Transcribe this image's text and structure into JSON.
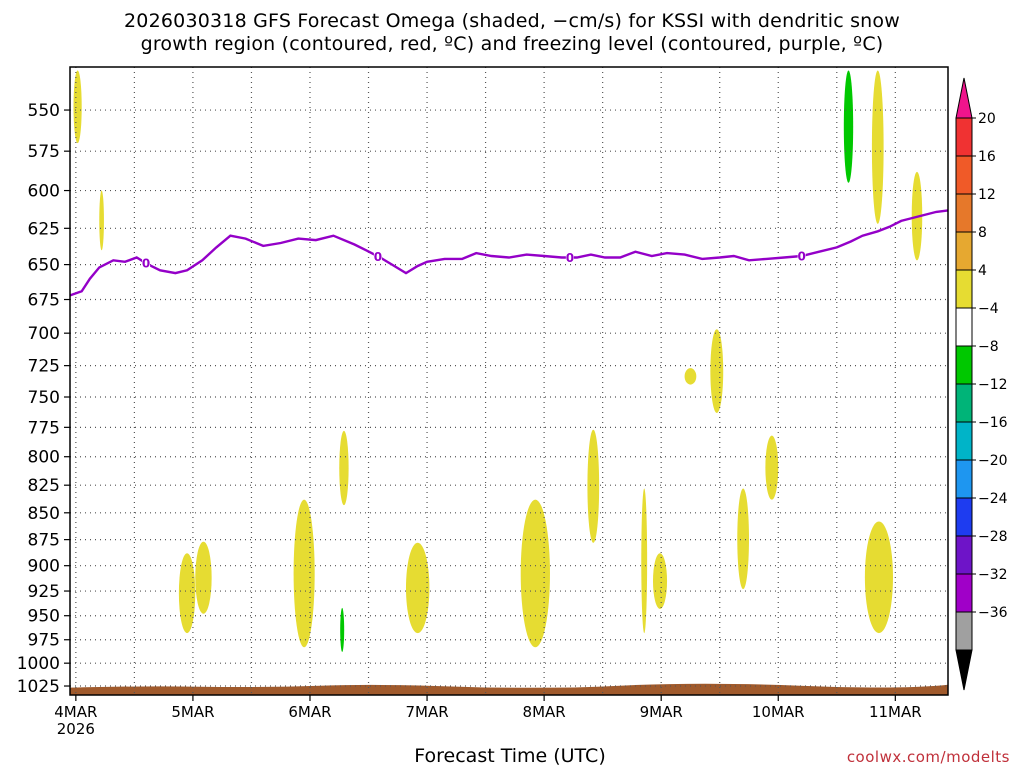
{
  "title_line1": "2026030318 GFS Forecast Omega (shaded, −cm/s) for KSSI with dendritic snow",
  "title_line2": "growth region (contoured, red, ºC) and freezing level (contoured, purple, ºC)",
  "credit": "coolwx.com/modelts",
  "colors": {
    "freezing_level": "#9400c8",
    "ground": "#a05a2c",
    "omega_yellow": "#e6dc32",
    "omega_green": "#00c800"
  },
  "chart_data": {
    "type": "heatmap",
    "xlabel": "Forecast Time (UTC)",
    "x_unit": "days from 2026-03-04 00Z",
    "xlim": [
      -0.05,
      7.45
    ],
    "ylim": [
      525,
      1035
    ],
    "y_scale": "log-pressure (hPa)",
    "y_ticks": [
      550,
      575,
      600,
      625,
      650,
      675,
      700,
      725,
      750,
      775,
      800,
      825,
      850,
      875,
      900,
      925,
      950,
      975,
      1000,
      1025
    ],
    "x_ticks": [
      {
        "x": 0,
        "label": "4MAR"
      },
      {
        "x": 1,
        "label": "5MAR"
      },
      {
        "x": 2,
        "label": "6MAR"
      },
      {
        "x": 3,
        "label": "7MAR"
      },
      {
        "x": 4,
        "label": "8MAR"
      },
      {
        "x": 5,
        "label": "9MAR"
      },
      {
        "x": 6,
        "label": "10MAR"
      },
      {
        "x": 7,
        "label": "11MAR"
      }
    ],
    "x_year_label": "2026",
    "grid": true,
    "colorbar": {
      "labels": [
        "20",
        "16",
        "12",
        "8",
        "4",
        "−4",
        "−8",
        "−12",
        "−16",
        "−20",
        "−24",
        "−28",
        "−32",
        "−36"
      ],
      "colors": [
        "#f03232",
        "#f05a28",
        "#e6782a",
        "#e6a830",
        "#e6dc32",
        "#ffffff",
        "#00c800",
        "#00b478",
        "#00b4c8",
        "#1e96f0",
        "#1e3cf0",
        "#6e14c8",
        "#a000c8",
        "#a0a0a0"
      ],
      "top_triangle": "#f0148c",
      "bottom_triangle": "#000000"
    },
    "freezing_level": {
      "label": "0",
      "points": [
        [
          -0.05,
          672
        ],
        [
          0.05,
          669
        ],
        [
          0.12,
          660
        ],
        [
          0.2,
          652
        ],
        [
          0.32,
          647
        ],
        [
          0.42,
          648
        ],
        [
          0.52,
          645
        ],
        [
          0.62,
          650
        ],
        [
          0.72,
          654
        ],
        [
          0.85,
          656
        ],
        [
          0.95,
          654
        ],
        [
          1.08,
          647
        ],
        [
          1.2,
          638
        ],
        [
          1.32,
          630
        ],
        [
          1.45,
          632
        ],
        [
          1.6,
          637
        ],
        [
          1.75,
          635
        ],
        [
          1.9,
          632
        ],
        [
          2.05,
          633
        ],
        [
          2.2,
          630
        ],
        [
          2.38,
          636
        ],
        [
          2.48,
          640
        ],
        [
          2.6,
          645
        ],
        [
          2.72,
          651
        ],
        [
          2.82,
          656
        ],
        [
          2.92,
          651
        ],
        [
          3.0,
          648
        ],
        [
          3.15,
          646
        ],
        [
          3.3,
          646
        ],
        [
          3.42,
          642
        ],
        [
          3.55,
          644
        ],
        [
          3.7,
          645
        ],
        [
          3.85,
          643
        ],
        [
          4.0,
          644
        ],
        [
          4.15,
          645
        ],
        [
          4.28,
          645
        ],
        [
          4.4,
          643
        ],
        [
          4.52,
          645
        ],
        [
          4.65,
          645
        ],
        [
          4.78,
          641
        ],
        [
          4.92,
          644
        ],
        [
          5.05,
          642
        ],
        [
          5.2,
          643
        ],
        [
          5.35,
          646
        ],
        [
          5.5,
          645
        ],
        [
          5.62,
          644
        ],
        [
          5.75,
          647
        ],
        [
          5.9,
          646
        ],
        [
          6.05,
          645
        ],
        [
          6.2,
          644
        ],
        [
          6.35,
          641
        ],
        [
          6.5,
          638
        ],
        [
          6.62,
          634
        ],
        [
          6.72,
          630
        ],
        [
          6.85,
          627
        ],
        [
          6.95,
          624
        ],
        [
          7.05,
          620
        ],
        [
          7.15,
          618
        ],
        [
          7.25,
          616
        ],
        [
          7.35,
          614
        ],
        [
          7.45,
          613
        ]
      ],
      "contour_labels_x": [
        0.6,
        2.58,
        4.22,
        6.2
      ]
    },
    "ground_level_hPa": 1028,
    "omega_regions": [
      {
        "value_class": "4",
        "x": [
          -0.02,
          0.05
        ],
        "p": [
          527,
          570
        ]
      },
      {
        "value_class": "4",
        "x": [
          0.2,
          0.24
        ],
        "p": [
          600,
          640
        ]
      },
      {
        "value_class": "4",
        "x": [
          0.88,
          1.02
        ],
        "p": [
          888,
          968
        ]
      },
      {
        "value_class": "4",
        "x": [
          1.02,
          1.16
        ],
        "p": [
          877,
          948
        ]
      },
      {
        "value_class": "4",
        "x": [
          1.86,
          2.04
        ],
        "p": [
          838,
          983
        ]
      },
      {
        "value_class": "4",
        "x": [
          2.25,
          2.33
        ],
        "p": [
          778,
          843
        ]
      },
      {
        "value_class": "-4",
        "x": [
          2.26,
          2.29
        ],
        "p": [
          942,
          988
        ]
      },
      {
        "value_class": "4",
        "x": [
          2.82,
          3.02
        ],
        "p": [
          878,
          968
        ]
      },
      {
        "value_class": "4",
        "x": [
          3.8,
          4.05
        ],
        "p": [
          838,
          983
        ]
      },
      {
        "value_class": "4",
        "x": [
          4.37,
          4.47
        ],
        "p": [
          777,
          878
        ]
      },
      {
        "value_class": "4",
        "x": [
          4.83,
          4.88
        ],
        "p": [
          828,
          968
        ]
      },
      {
        "value_class": "4",
        "x": [
          4.93,
          5.05
        ],
        "p": [
          888,
          943
        ]
      },
      {
        "value_class": "4",
        "x": [
          5.2,
          5.3
        ],
        "p": [
          727,
          740
        ]
      },
      {
        "value_class": "4",
        "x": [
          5.42,
          5.53
        ],
        "p": [
          697,
          763
        ]
      },
      {
        "value_class": "4",
        "x": [
          5.65,
          5.75
        ],
        "p": [
          828,
          923
        ]
      },
      {
        "value_class": "4",
        "x": [
          5.89,
          6.0
        ],
        "p": [
          782,
          838
        ]
      },
      {
        "value_class": "4",
        "x": [
          6.74,
          6.98
        ],
        "p": [
          858,
          968
        ]
      },
      {
        "value_class": "-4",
        "x": [
          6.56,
          6.64
        ],
        "p": [
          527,
          595
        ]
      },
      {
        "value_class": "4",
        "x": [
          6.8,
          6.9
        ],
        "p": [
          527,
          622
        ]
      },
      {
        "value_class": "4",
        "x": [
          7.14,
          7.23
        ],
        "p": [
          588,
          647
        ]
      }
    ]
  }
}
